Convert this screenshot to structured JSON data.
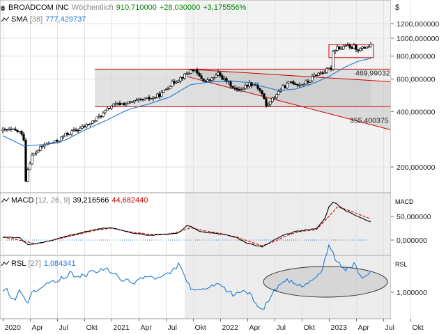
{
  "header": {
    "name": "BROADCOM INC",
    "interval": "Wöchentlich",
    "last": "910,710000",
    "change": "+28,030000",
    "change_pct": "+3,175556%",
    "currency": "$"
  },
  "sma": {
    "label": "SMA",
    "period": "[38]",
    "value": "777,429737"
  },
  "macd": {
    "label": "MACD",
    "params": "[12, 26, 9]",
    "value": "39,216566",
    "signal": "44,682440",
    "axis_label": "MACD"
  },
  "rsl": {
    "label": "RSL",
    "period": "[27]",
    "value": "1,084341",
    "axis_label": "RSL"
  },
  "levels": {
    "l1": "469,99032",
    "l2": "355,400375"
  },
  "colors": {
    "up": "#008000",
    "down": "#cc0000",
    "sma": "#1f77d4",
    "macd": "#000000",
    "signal": "#cc0000",
    "rsl": "#1f77d4",
    "channel": "#cc0000"
  },
  "chart_data": {
    "type": "line",
    "x_ticks": [
      "2020",
      "Apr",
      "Jul",
      "Okt",
      "2021",
      "Apr",
      "Jul",
      "Okt",
      "2022",
      "Apr",
      "Jul",
      "Okt",
      "2023",
      "Apr",
      "Jul",
      "Okt"
    ],
    "price_ticks": [
      "1200,000000",
      "1000,000000",
      "800,000000",
      "600,000000",
      "400,000000",
      "200,000000"
    ],
    "price_scale": "log",
    "macd_ticks": [
      "50,000000",
      "0,000000"
    ],
    "rsl_ticks": [
      "1,000000"
    ],
    "price_anchors": [
      [
        0,
        315
      ],
      [
        4,
        318
      ],
      [
        8,
        310
      ],
      [
        10,
        285
      ],
      [
        11,
        170
      ],
      [
        12,
        195
      ],
      [
        14,
        230
      ],
      [
        20,
        265
      ],
      [
        26,
        275
      ],
      [
        30,
        300
      ],
      [
        36,
        320
      ],
      [
        42,
        345
      ],
      [
        48,
        390
      ],
      [
        52,
        430
      ],
      [
        56,
        440
      ],
      [
        60,
        445
      ],
      [
        66,
        460
      ],
      [
        72,
        475
      ],
      [
        76,
        500
      ],
      [
        80,
        560
      ],
      [
        84,
        600
      ],
      [
        88,
        640
      ],
      [
        91,
        680
      ],
      [
        94,
        620
      ],
      [
        97,
        580
      ],
      [
        100,
        600
      ],
      [
        103,
        640
      ],
      [
        106,
        595
      ],
      [
        109,
        560
      ],
      [
        112,
        520
      ],
      [
        115,
        540
      ],
      [
        118,
        570
      ],
      [
        121,
        560
      ],
      [
        124,
        500
      ],
      [
        126,
        430
      ],
      [
        128,
        450
      ],
      [
        131,
        500
      ],
      [
        134,
        540
      ],
      [
        138,
        580
      ],
      [
        142,
        560
      ],
      [
        146,
        580
      ],
      [
        150,
        640
      ],
      [
        154,
        660
      ],
      [
        156,
        680
      ],
      [
        157,
        690
      ],
      [
        158,
        850
      ],
      [
        160,
        900
      ],
      [
        162,
        880
      ],
      [
        164,
        920
      ],
      [
        166,
        880
      ],
      [
        168,
        900
      ],
      [
        170,
        870
      ],
      [
        172,
        880
      ],
      [
        174,
        900
      ],
      [
        176,
        910.71
      ]
    ],
    "sma_anchors": [
      [
        0,
        295
      ],
      [
        10,
        260
      ],
      [
        20,
        265
      ],
      [
        30,
        280
      ],
      [
        40,
        320
      ],
      [
        50,
        360
      ],
      [
        60,
        410
      ],
      [
        70,
        440
      ],
      [
        80,
        480
      ],
      [
        90,
        560
      ],
      [
        100,
        580
      ],
      [
        110,
        585
      ],
      [
        118,
        575
      ],
      [
        125,
        545
      ],
      [
        132,
        520
      ],
      [
        140,
        530
      ],
      [
        148,
        565
      ],
      [
        156,
        620
      ],
      [
        164,
        700
      ],
      [
        170,
        750
      ],
      [
        176,
        777.43
      ]
    ],
    "macd_anchors": [
      [
        0,
        6
      ],
      [
        8,
        5
      ],
      [
        12,
        -10
      ],
      [
        16,
        -8
      ],
      [
        24,
        0
      ],
      [
        32,
        10
      ],
      [
        40,
        18
      ],
      [
        48,
        25
      ],
      [
        52,
        26
      ],
      [
        56,
        22
      ],
      [
        62,
        15
      ],
      [
        70,
        10
      ],
      [
        78,
        12
      ],
      [
        84,
        15
      ],
      [
        88,
        30
      ],
      [
        90,
        29
      ],
      [
        94,
        18
      ],
      [
        100,
        15
      ],
      [
        106,
        12
      ],
      [
        112,
        5
      ],
      [
        116,
        -5
      ],
      [
        120,
        -10
      ],
      [
        124,
        -14
      ],
      [
        128,
        -5
      ],
      [
        134,
        10
      ],
      [
        140,
        18
      ],
      [
        146,
        22
      ],
      [
        150,
        24
      ],
      [
        154,
        45
      ],
      [
        156,
        70
      ],
      [
        158,
        80
      ],
      [
        160,
        75
      ],
      [
        164,
        62
      ],
      [
        170,
        50
      ],
      [
        174,
        42
      ],
      [
        176,
        39.22
      ]
    ],
    "signal_anchors": [
      [
        0,
        6
      ],
      [
        10,
        -2
      ],
      [
        16,
        -8
      ],
      [
        26,
        2
      ],
      [
        36,
        12
      ],
      [
        46,
        22
      ],
      [
        52,
        25
      ],
      [
        60,
        18
      ],
      [
        70,
        12
      ],
      [
        80,
        13
      ],
      [
        86,
        20
      ],
      [
        90,
        26
      ],
      [
        96,
        20
      ],
      [
        104,
        14
      ],
      [
        112,
        6
      ],
      [
        118,
        -3
      ],
      [
        124,
        -12
      ],
      [
        130,
        -3
      ],
      [
        136,
        10
      ],
      [
        142,
        18
      ],
      [
        150,
        22
      ],
      [
        156,
        50
      ],
      [
        160,
        70
      ],
      [
        164,
        65
      ],
      [
        170,
        55
      ],
      [
        176,
        44.68
      ]
    ],
    "rsl_anchors": [
      [
        0,
        1.0
      ],
      [
        2,
        1.01
      ],
      [
        4,
        0.98
      ],
      [
        6,
        0.96
      ],
      [
        8,
        1.02
      ],
      [
        10,
        0.98
      ],
      [
        12,
        0.95
      ],
      [
        14,
        1.01
      ],
      [
        16,
        1.0
      ],
      [
        20,
        1.03
      ],
      [
        26,
        1.05
      ],
      [
        32,
        1.08
      ],
      [
        38,
        1.07
      ],
      [
        44,
        1.09
      ],
      [
        50,
        1.1
      ],
      [
        56,
        1.06
      ],
      [
        62,
        1.04
      ],
      [
        68,
        1.07
      ],
      [
        74,
        1.06
      ],
      [
        80,
        1.08
      ],
      [
        84,
        1.12
      ],
      [
        86,
        1.1
      ],
      [
        88,
        1.04
      ],
      [
        92,
        1.0
      ],
      [
        98,
        1.02
      ],
      [
        104,
        1.03
      ],
      [
        110,
        0.99
      ],
      [
        116,
        1.01
      ],
      [
        120,
        0.97
      ],
      [
        124,
        0.92
      ],
      [
        126,
        0.95
      ],
      [
        130,
        1.01
      ],
      [
        136,
        1.05
      ],
      [
        142,
        1.03
      ],
      [
        148,
        1.05
      ],
      [
        152,
        1.08
      ],
      [
        154,
        1.14
      ],
      [
        156,
        1.2
      ],
      [
        158,
        1.17
      ],
      [
        160,
        1.13
      ],
      [
        164,
        1.1
      ],
      [
        168,
        1.12
      ],
      [
        172,
        1.06
      ],
      [
        176,
        1.084
      ]
    ],
    "channel_upper": [
      [
        88,
        680
      ],
      [
        176,
        590
      ]
    ],
    "channel_lower": [
      [
        88,
        620
      ],
      [
        176,
        340
      ]
    ],
    "hlines": [
      680,
      425
    ],
    "rect": {
      "x0": 156,
      "x1": 176,
      "y0": 785,
      "y1": 925
    },
    "sideways_box": {
      "x0": 44,
      "x1": 176,
      "y0": 425,
      "y1": 680
    }
  }
}
